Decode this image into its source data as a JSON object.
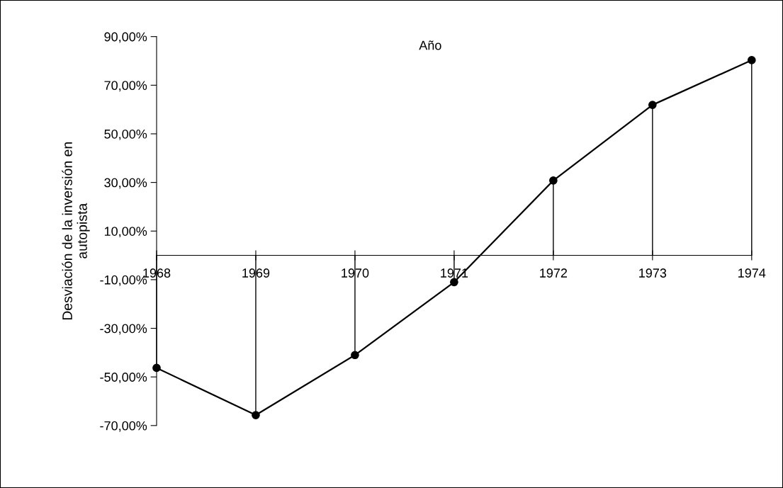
{
  "chart_data": {
    "type": "line",
    "xlabel": "Año",
    "ylabel": "Desviación de la inversión en\nautopista",
    "categories": [
      "1968",
      "1969",
      "1970",
      "1971",
      "1972",
      "1973",
      "1974"
    ],
    "series": [
      {
        "color": "#000000",
        "values": [
          -46.3,
          -65.7,
          -41.0,
          -11.0,
          30.8,
          61.9,
          80.3
        ]
      },
      {
        "type": "lollipop",
        "color": "#000000",
        "marker": "circle",
        "values": [
          -46.3,
          -65.7,
          -41.0,
          -11.0,
          30.8,
          61.9,
          80.3
        ]
      }
    ],
    "ylim": [
      -70,
      90
    ],
    "yticks": [
      {
        "value": 90,
        "label": "90,00%"
      },
      {
        "value": 70,
        "label": "70,00%"
      },
      {
        "value": 50,
        "label": "50,00%"
      },
      {
        "value": 30,
        "label": "30,00%"
      },
      {
        "value": 10,
        "label": "10,00%"
      },
      {
        "value": -10,
        "label": "-10,00%"
      },
      {
        "value": -30,
        "label": "-30,00%"
      },
      {
        "value": -50,
        "label": "-50,00%"
      },
      {
        "value": -70,
        "label": "-70,00%"
      }
    ],
    "grid": false,
    "legend": false
  }
}
